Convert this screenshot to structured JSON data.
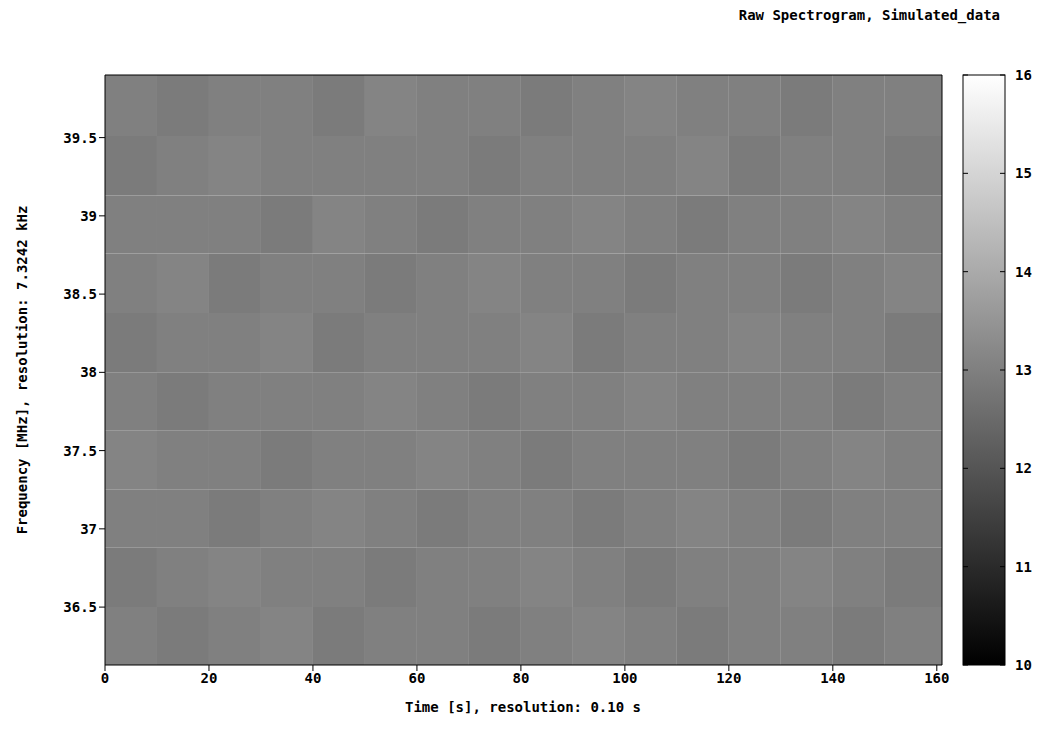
{
  "chart_data": {
    "type": "heatmap",
    "title": "Raw Spectrogram, Simulated_data",
    "x_label": "Time [s], resolution: 0.10 s",
    "y_label": "Frequency [MHz], resolution: 7.3242 kHz",
    "xlim": [
      0,
      161
    ],
    "ylim": [
      36.13,
      39.9
    ],
    "xticks": [
      0,
      20,
      40,
      60,
      80,
      100,
      120,
      140,
      160
    ],
    "yticks": [
      36.5,
      37,
      37.5,
      38,
      38.5,
      39,
      39.5
    ],
    "time_bins": [
      0,
      10,
      20,
      30,
      40,
      50,
      60,
      70,
      80,
      90,
      100,
      110,
      120,
      130,
      140,
      150,
      161
    ],
    "frequency_bins": [
      36.13,
      36.5,
      36.88,
      37.25,
      37.63,
      38.0,
      38.38,
      38.76,
      39.13,
      39.51,
      39.9
    ],
    "cells": [
      [
        13.0,
        12.9,
        13.0,
        13.1,
        12.9,
        13.0,
        13.0,
        12.9,
        13.0,
        13.1,
        13.0,
        12.9,
        13.0,
        13.0,
        12.9,
        13.0
      ],
      [
        12.9,
        13.0,
        13.1,
        13.0,
        13.0,
        12.9,
        13.0,
        13.0,
        13.1,
        13.0,
        12.9,
        13.0,
        13.0,
        13.1,
        13.0,
        12.9
      ],
      [
        13.0,
        13.0,
        12.9,
        13.0,
        13.1,
        13.0,
        12.9,
        13.0,
        13.0,
        12.9,
        13.0,
        13.1,
        13.0,
        12.9,
        13.0,
        13.0
      ],
      [
        13.1,
        13.0,
        13.0,
        12.9,
        13.0,
        13.0,
        13.1,
        13.0,
        12.9,
        13.0,
        13.0,
        13.0,
        12.9,
        13.0,
        13.1,
        13.0
      ],
      [
        13.0,
        12.9,
        13.0,
        13.0,
        13.0,
        13.1,
        13.0,
        12.9,
        13.0,
        13.0,
        13.1,
        13.0,
        13.0,
        13.0,
        12.9,
        13.0
      ],
      [
        12.9,
        13.0,
        13.0,
        13.1,
        12.9,
        13.0,
        13.0,
        13.0,
        13.1,
        12.9,
        13.0,
        13.0,
        13.1,
        13.0,
        13.0,
        12.9
      ],
      [
        13.0,
        13.1,
        12.9,
        13.0,
        13.0,
        12.9,
        13.0,
        13.1,
        13.0,
        13.0,
        12.9,
        13.0,
        13.0,
        12.9,
        13.0,
        13.1
      ],
      [
        13.0,
        13.0,
        13.0,
        12.9,
        13.1,
        13.0,
        12.9,
        13.0,
        13.0,
        13.1,
        13.0,
        12.9,
        13.0,
        13.0,
        13.1,
        13.0
      ],
      [
        12.9,
        13.0,
        13.1,
        13.0,
        13.0,
        13.0,
        13.0,
        12.9,
        13.0,
        13.0,
        13.0,
        13.1,
        12.9,
        13.0,
        13.0,
        12.9
      ],
      [
        13.0,
        12.9,
        13.0,
        13.0,
        12.9,
        13.1,
        13.0,
        13.0,
        12.9,
        13.0,
        13.1,
        13.0,
        13.0,
        12.9,
        13.0,
        13.0
      ]
    ],
    "colorbar": {
      "range": [
        10,
        16
      ],
      "ticks": [
        10,
        11,
        12,
        13,
        14,
        15,
        16
      ]
    }
  }
}
